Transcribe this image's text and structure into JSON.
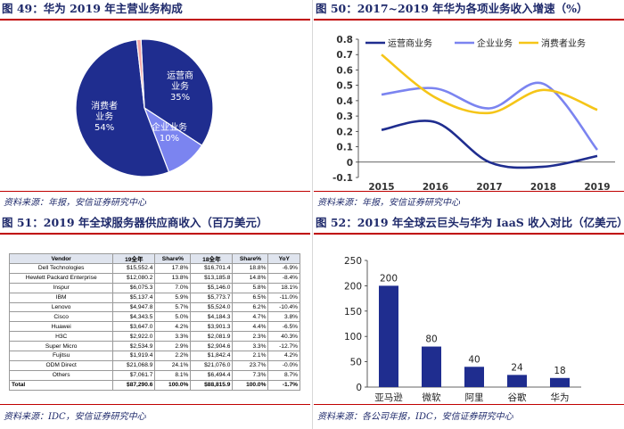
{
  "panels": {
    "p49": {
      "title": "图 49：华为 2019 年主营业务构成",
      "source": "资料来源：年报，安信证券研究中心"
    },
    "p50": {
      "title": "图 50：2017~2019 年华为各项业务收入增速（%）",
      "source": "资料来源：年报，安信证券研究中心"
    },
    "p51": {
      "title": "图 51：2019 年全球服务器供应商收入（百万美元）",
      "source": "资料来源：IDC，安信证券研究中心"
    },
    "p52": {
      "title": "图 52：2019 年全球云巨头与华为 IaaS 收入对比（亿美元）",
      "source": "资料来源：各公司年报，IDC，安信证券研究中心"
    }
  },
  "chart_data": [
    {
      "type": "pie",
      "categories": [
        "运营商业务",
        "企业业务",
        "消费者业务",
        "其他"
      ],
      "labels": [
        "运营商业务",
        "企业业务",
        "消费者业务",
        ""
      ],
      "values": [
        35,
        10,
        54,
        1
      ],
      "value_labels": [
        "35%",
        "10%",
        "54%",
        ""
      ],
      "colors": [
        "#1f2d8f",
        "#7b84f0",
        "#1f2d8f",
        "#f2a6a6"
      ]
    },
    {
      "type": "line",
      "x": [
        "2015",
        "2016",
        "2017",
        "2018",
        "2019"
      ],
      "ylim": [
        -0.1,
        0.8
      ],
      "yticks": [
        "-0.1",
        "0",
        "0.1",
        "0.2",
        "0.3",
        "0.4",
        "0.5",
        "0.6",
        "0.7",
        "0.8"
      ],
      "legend_position": "top",
      "series": [
        {
          "name": "运营商业务",
          "values": [
            0.21,
            0.26,
            0.0,
            -0.03,
            0.04
          ],
          "color": "#1f2d8f"
        },
        {
          "name": "企业业务",
          "values": [
            0.44,
            0.48,
            0.35,
            0.51,
            0.08
          ],
          "color": "#7b84f0"
        },
        {
          "name": "消费者业务",
          "values": [
            0.7,
            0.42,
            0.32,
            0.47,
            0.34
          ],
          "color": "#f5c518"
        }
      ]
    },
    {
      "type": "table",
      "columns": [
        "Vendor",
        "19全年",
        "Share%",
        "18全年",
        "Share%",
        "YoY"
      ],
      "rows": [
        [
          "Dell Technologies",
          "$15,552.4",
          "17.8%",
          "$16,701.4",
          "18.8%",
          "-6.9%"
        ],
        [
          "Hewlett Packard Enterprise",
          "$12,080.2",
          "13.8%",
          "$13,185.8",
          "14.8%",
          "-8.4%"
        ],
        [
          "Inspur",
          "$6,075.3",
          "7.0%",
          "$5,146.0",
          "5.8%",
          "18.1%"
        ],
        [
          "IBM",
          "$5,137.4",
          "5.9%",
          "$5,773.7",
          "6.5%",
          "-11.0%"
        ],
        [
          "Lenovo",
          "$4,947.8",
          "5.7%",
          "$5,524.0",
          "6.2%",
          "-10.4%"
        ],
        [
          "Cisco",
          "$4,343.5",
          "5.0%",
          "$4,184.3",
          "4.7%",
          "3.8%"
        ],
        [
          "Huawei",
          "$3,647.0",
          "4.2%",
          "$3,901.3",
          "4.4%",
          "-6.5%"
        ],
        [
          "H3C",
          "$2,922.0",
          "3.3%",
          "$2,081.9",
          "2.3%",
          "40.3%"
        ],
        [
          "Super Micro",
          "$2,534.9",
          "2.9%",
          "$2,904.6",
          "3.3%",
          "-12.7%"
        ],
        [
          "Fujitsu",
          "$1,919.4",
          "2.2%",
          "$1,842.4",
          "2.1%",
          "4.2%"
        ],
        [
          "ODM Direct",
          "$21,068.9",
          "24.1%",
          "$21,076.0",
          "23.7%",
          "-0.0%"
        ],
        [
          "Others",
          "$7,061.7",
          "8.1%",
          "$6,494.4",
          "7.3%",
          "8.7%"
        ],
        [
          "Total",
          "$87,290.6",
          "100.0%",
          "$88,815.9",
          "100.0%",
          "-1.7%"
        ]
      ]
    },
    {
      "type": "bar",
      "categories": [
        "亚马逊",
        "微软",
        "阿里",
        "谷歌",
        "华为"
      ],
      "values": [
        200,
        80,
        40,
        24,
        18
      ],
      "ylim": [
        0,
        250
      ],
      "yticks": [
        "0",
        "50",
        "100",
        "150",
        "200",
        "250"
      ],
      "color": "#1f2d8f"
    }
  ]
}
